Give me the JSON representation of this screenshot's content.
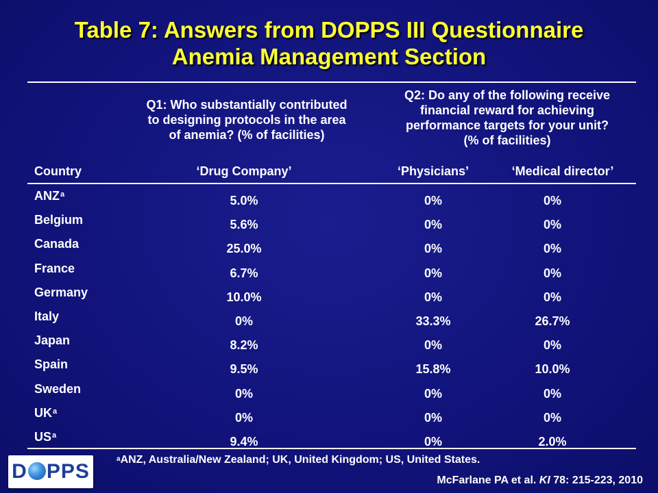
{
  "title": {
    "line1": "Table 7: Answers from DOPPS III Questionnaire",
    "line2": "Anemia Management Section"
  },
  "questions": {
    "q1": [
      "Q1: Who substantially contributed",
      "to designing protocols in the area",
      "of anemia? (% of facilities)"
    ],
    "q2": [
      "Q2: Do any of the following receive",
      "financial reward for achieving",
      "performance targets for your unit?",
      "(% of facilities)"
    ]
  },
  "columns": {
    "country": "Country",
    "drug_company": "‘Drug Company’",
    "physicians": "‘Physicians’",
    "medical_director": "‘Medical director’"
  },
  "rows": [
    {
      "country": "ANZ",
      "sup": "a",
      "drug_company": "5.0%",
      "physicians": "0%",
      "medical_director": "0%"
    },
    {
      "country": "Belgium",
      "sup": "",
      "drug_company": "5.6%",
      "physicians": "0%",
      "medical_director": "0%"
    },
    {
      "country": "Canada",
      "sup": "",
      "drug_company": "25.0%",
      "physicians": "0%",
      "medical_director": "0%"
    },
    {
      "country": "France",
      "sup": "",
      "drug_company": "6.7%",
      "physicians": "0%",
      "medical_director": "0%"
    },
    {
      "country": "Germany",
      "sup": "",
      "drug_company": "10.0%",
      "physicians": "0%",
      "medical_director": "0%"
    },
    {
      "country": "Italy",
      "sup": "",
      "drug_company": "0%",
      "physicians": "33.3%",
      "medical_director": "26.7%"
    },
    {
      "country": "Japan",
      "sup": "",
      "drug_company": "8.2%",
      "physicians": "0%",
      "medical_director": "0%"
    },
    {
      "country": "Spain",
      "sup": "",
      "drug_company": "9.5%",
      "physicians": "15.8%",
      "medical_director": "10.0%"
    },
    {
      "country": "Sweden",
      "sup": "",
      "drug_company": "0%",
      "physicians": "0%",
      "medical_director": "0%"
    },
    {
      "country": "UK",
      "sup": "a",
      "drug_company": "0%",
      "physicians": "0%",
      "medical_director": "0%"
    },
    {
      "country": "US",
      "sup": "a",
      "drug_company": "9.4%",
      "physicians": "0%",
      "medical_director": "2.0%"
    }
  ],
  "footnote": {
    "marker": "a",
    "text": "ANZ, Australia/New Zealand; UK, United Kingdom; US, United States."
  },
  "citation": {
    "authors": "McFarlane PA et al. ",
    "journal": "KI",
    "details": " 78: 215-223, 2010"
  },
  "logo": {
    "left": "D",
    "right": "PPS"
  },
  "colors": {
    "background": "#12147a",
    "title": "#ffff33",
    "text": "#ffffff",
    "logo_text": "#1d3f9a"
  },
  "icons": {
    "logo_globe": "globe-icon"
  }
}
